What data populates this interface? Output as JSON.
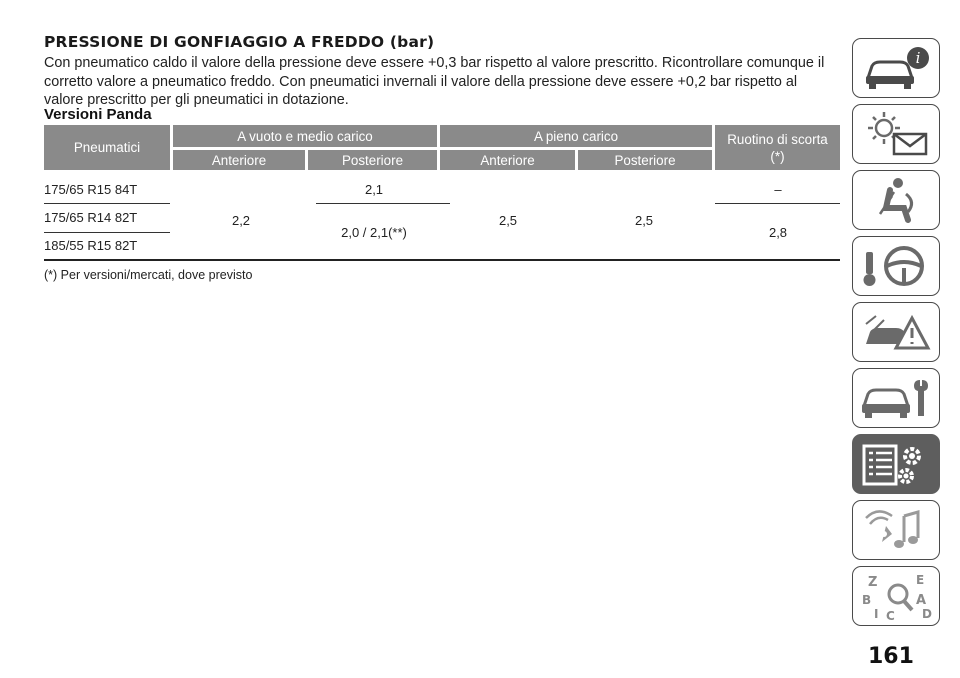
{
  "title": "PRESSIONE DI GONFIAGGIO A FREDDO (bar)",
  "intro": "Con pneumatico caldo il valore della pressione deve essere +0,3 bar rispetto al valore prescritto. Ricontrollare comunque il corretto valore a pneumatico freddo. Con pneumatici invernali il valore della pressione deve essere +0,2 bar rispetto al valore prescritto per gli pneumatici in dotazione.",
  "subtitle": "Versioni Panda",
  "table": {
    "col_tyres": "Pneumatici",
    "group_empty": "A vuoto e medio carico",
    "group_full": "A pieno carico",
    "col_spare": "Ruotino di scorta (*)",
    "front": "Anteriore",
    "rear": "Posteriore",
    "rows": [
      "175/65 R15 84T",
      "175/65 R14 82T",
      "185/55 R15 82T"
    ],
    "empty_front": "2,2",
    "empty_rear_row1": "2,1",
    "empty_rear_row23": "2,0 / 2,1(**)",
    "full_front": "2,5",
    "full_rear": "2,5",
    "spare_row1": "–",
    "spare_row23": "2,8"
  },
  "footnote": "(*) Per versioni/mercati, dove previsto",
  "page_number": "161",
  "side_tabs": [
    {
      "icon": "car-info-icon",
      "active": false
    },
    {
      "icon": "warning-lights-message-icon",
      "active": false
    },
    {
      "icon": "seat-airbag-icon",
      "active": false
    },
    {
      "icon": "key-steering-wheel-icon",
      "active": false
    },
    {
      "icon": "car-warning-triangle-icon",
      "active": false
    },
    {
      "icon": "car-wrench-icon",
      "active": false
    },
    {
      "icon": "specs-list-gear-icon",
      "active": true
    },
    {
      "icon": "multimedia-music-icon",
      "active": false
    },
    {
      "icon": "alphabetical-index-icon",
      "active": false
    }
  ],
  "colors": {
    "header_bg": "#8a8a8a",
    "tab_active_bg": "#5e5e5e",
    "tab_border": "#4a4a4a"
  }
}
